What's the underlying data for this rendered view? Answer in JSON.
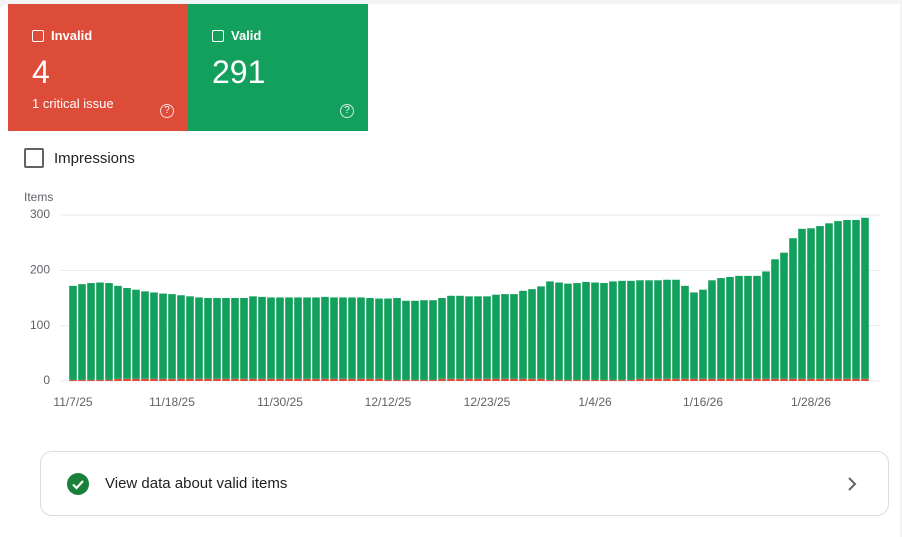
{
  "cards": [
    {
      "label": "Invalid",
      "value": "4",
      "subtitle": "1 critical issue",
      "color": "#dd4b39"
    },
    {
      "label": "Valid",
      "value": "291",
      "color": "#12a05c"
    }
  ],
  "impressions_label": "Impressions",
  "chart_data": {
    "type": "stacked-bar",
    "y_label": "Items",
    "categories": [
      "11/7/25",
      null,
      null,
      null,
      null,
      null,
      null,
      null,
      null,
      null,
      null,
      "11/18/25",
      null,
      null,
      null,
      null,
      null,
      null,
      null,
      null,
      null,
      null,
      null,
      "11/30/25",
      null,
      null,
      null,
      null,
      null,
      null,
      null,
      null,
      null,
      null,
      null,
      "12/12/25",
      null,
      null,
      null,
      null,
      null,
      null,
      null,
      null,
      null,
      null,
      "12/23/25",
      null,
      null,
      null,
      null,
      null,
      null,
      null,
      null,
      null,
      null,
      null,
      "1/4/26",
      null,
      null,
      null,
      null,
      null,
      null,
      null,
      null,
      null,
      null,
      null,
      "1/16/26",
      null,
      null,
      null,
      null,
      null,
      null,
      null,
      null,
      null,
      null,
      null,
      "1/28/26",
      null,
      null,
      null,
      null,
      null,
      null
    ],
    "series": [
      {
        "name": "Invalid",
        "color": "#dd4b39",
        "values": [
          2,
          2,
          2,
          2,
          2,
          4,
          4,
          4,
          4,
          4,
          4,
          4,
          4,
          4,
          4,
          4,
          4,
          4,
          4,
          4,
          4,
          4,
          4,
          4,
          4,
          4,
          4,
          4,
          4,
          4,
          4,
          4,
          4,
          4,
          4,
          2,
          2,
          2,
          2,
          2,
          2,
          4,
          4,
          4,
          4,
          4,
          4,
          4,
          4,
          4,
          4,
          4,
          4,
          2,
          2,
          2,
          2,
          2,
          2,
          2,
          2,
          2,
          2,
          4,
          4,
          4,
          4,
          4,
          4,
          4,
          4,
          4,
          4,
          4,
          4,
          4,
          4,
          4,
          4,
          4,
          4,
          4,
          4,
          4,
          4,
          4,
          4,
          4,
          4
        ]
      },
      {
        "name": "Valid",
        "color": "#12a05c",
        "values": [
          170,
          173,
          175,
          176,
          175,
          168,
          164,
          161,
          158,
          156,
          154,
          153,
          151,
          149,
          147,
          146,
          146,
          146,
          146,
          146,
          149,
          148,
          147,
          147,
          147,
          147,
          147,
          147,
          148,
          147,
          147,
          147,
          147,
          146,
          145,
          147,
          148,
          143,
          143,
          144,
          144,
          146,
          150,
          150,
          149,
          149,
          149,
          152,
          153,
          153,
          159,
          162,
          167,
          178,
          176,
          174,
          175,
          177,
          176,
          175,
          178,
          179,
          179,
          178,
          178,
          178,
          179,
          179,
          168,
          156,
          161,
          178,
          182,
          184,
          186,
          186,
          186,
          194,
          216,
          228,
          254,
          271,
          272,
          276,
          281,
          285,
          287,
          287,
          291
        ]
      }
    ],
    "ylim": [
      0,
      300
    ],
    "yticks": [
      0,
      100,
      200,
      300
    ],
    "grid": true
  },
  "link": {
    "text": "View data about valid items"
  }
}
